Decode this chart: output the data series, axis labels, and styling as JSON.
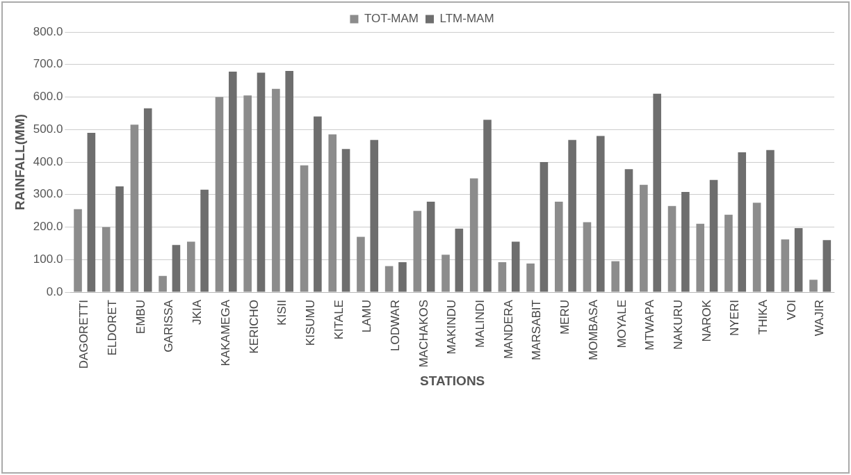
{
  "chart_data": {
    "type": "bar",
    "xlabel": "STATIONS",
    "ylabel": "RAINFALL(MM)",
    "categories": [
      "DAGORETTI",
      "ELDORET",
      "EMBU",
      "GARISSA",
      "JKIA",
      "KAKAMEGA",
      "KERICHO",
      "KISII",
      "KISUMU",
      "KITALE",
      "LAMU",
      "LODWAR",
      "MACHAKOS",
      "MAKINDU",
      "MALINDI",
      "MANDERA",
      "MARSABIT",
      "MERU",
      "MOMBASA",
      "MOYALE",
      "MTWAPA",
      "NAKURU",
      "NAROK",
      "NYERI",
      "THIKA",
      "VOI",
      "WAJIR"
    ],
    "series": [
      {
        "name": "TOT-MAM",
        "color": "#8c8c8c",
        "values": [
          255,
          200,
          515,
          50,
          155,
          600,
          605,
          625,
          390,
          485,
          170,
          80,
          250,
          115,
          350,
          92,
          88,
          278,
          215,
          95,
          330,
          265,
          210,
          238,
          275,
          162,
          38
        ]
      },
      {
        "name": "LTM-MAM",
        "color": "#6e6e6e",
        "values": [
          490,
          325,
          565,
          145,
          315,
          678,
          675,
          680,
          540,
          440,
          468,
          92,
          278,
          195,
          530,
          155,
          400,
          468,
          480,
          378,
          610,
          308,
          345,
          430,
          437,
          197,
          160
        ]
      }
    ],
    "ylim": [
      0,
      800
    ],
    "yticks": [
      {
        "value": 0,
        "label": "0.0"
      },
      {
        "value": 100,
        "label": "100.0"
      },
      {
        "value": 200,
        "label": "200.0"
      },
      {
        "value": 300,
        "label": "300.0"
      },
      {
        "value": 400,
        "label": "400.0"
      },
      {
        "value": 500,
        "label": "500.0"
      },
      {
        "value": 600,
        "label": "600.0"
      },
      {
        "value": 700,
        "label": "700.0"
      },
      {
        "value": 800,
        "label": "800.0"
      }
    ],
    "grid": "y",
    "legend": "top"
  }
}
